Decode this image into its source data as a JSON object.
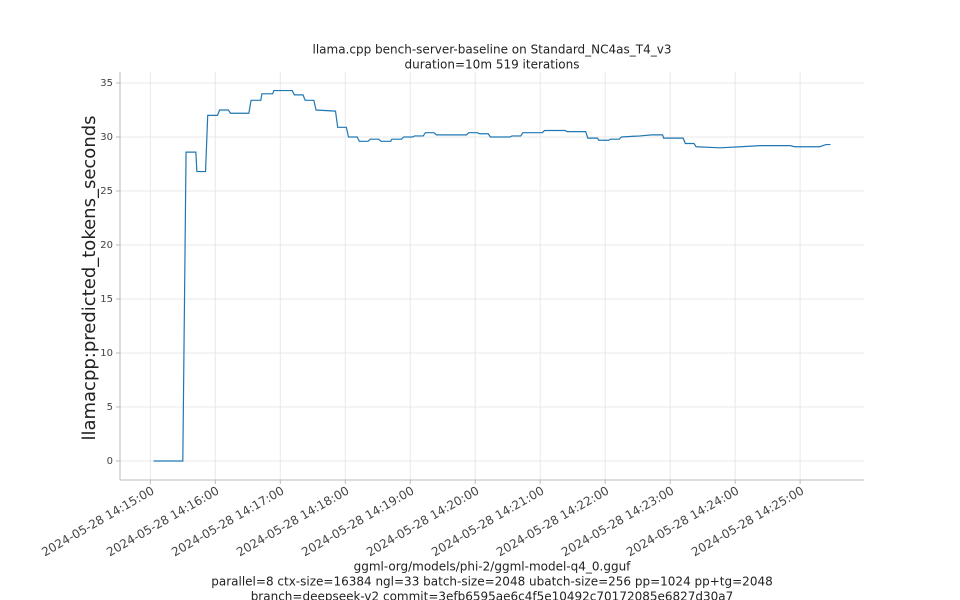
{
  "chart_data": {
    "type": "line",
    "title": "llama.cpp bench-server-baseline on Standard_NC4as_T4_v3",
    "subtitle": "duration=10m 519 iterations",
    "y_label": "llamacpp:predicted_tokens_seconds",
    "footer": [
      "ggml-org/models/phi-2/ggml-model-q4_0.gguf",
      "parallel=8 ctx-size=16384 ngl=33 batch-size=2048 ubatch-size=256 pp=1024 pp+tg=2048",
      "branch=deepseek-v2 commit=3efb6595ae6c4f5e10492c70172085e6827d30a7"
    ],
    "grid": true,
    "x": [
      "2024-05-28 14:15:03",
      "2024-05-28 14:15:30",
      "2024-05-28 14:15:33",
      "2024-05-28 14:15:42",
      "2024-05-28 14:15:43",
      "2024-05-28 14:15:51",
      "2024-05-28 14:15:53",
      "2024-05-28 14:16:02",
      "2024-05-28 14:16:04",
      "2024-05-28 14:16:12",
      "2024-05-28 14:16:14",
      "2024-05-28 14:16:31",
      "2024-05-28 14:16:33",
      "2024-05-28 14:16:42",
      "2024-05-28 14:16:43",
      "2024-05-28 14:16:53",
      "2024-05-28 14:16:54",
      "2024-05-28 14:17:11",
      "2024-05-28 14:17:13",
      "2024-05-28 14:17:21",
      "2024-05-28 14:17:23",
      "2024-05-28 14:17:31",
      "2024-05-28 14:17:33",
      "2024-05-28 14:17:51",
      "2024-05-28 14:17:53",
      "2024-05-28 14:18:01",
      "2024-05-28 14:18:03",
      "2024-05-28 14:18:11",
      "2024-05-28 14:18:13",
      "2024-05-28 14:18:21",
      "2024-05-28 14:18:23",
      "2024-05-28 14:18:31",
      "2024-05-28 14:18:33",
      "2024-05-28 14:18:42",
      "2024-05-28 14:18:43",
      "2024-05-28 14:18:52",
      "2024-05-28 14:18:54",
      "2024-05-28 14:19:02",
      "2024-05-28 14:19:04",
      "2024-05-28 14:19:12",
      "2024-05-28 14:19:14",
      "2024-05-28 14:19:22",
      "2024-05-28 14:19:24",
      "2024-05-28 14:19:52",
      "2024-05-28 14:19:54",
      "2024-05-28 14:20:02",
      "2024-05-28 14:20:04",
      "2024-05-28 14:20:12",
      "2024-05-28 14:20:14",
      "2024-05-28 14:20:32",
      "2024-05-28 14:20:34",
      "2024-05-28 14:20:42",
      "2024-05-28 14:20:44",
      "2024-05-28 14:21:02",
      "2024-05-28 14:21:04",
      "2024-05-28 14:21:23",
      "2024-05-28 14:21:25",
      "2024-05-28 14:21:42",
      "2024-05-28 14:21:44",
      "2024-05-28 14:21:53",
      "2024-05-28 14:21:54",
      "2024-05-28 14:22:03",
      "2024-05-28 14:22:05",
      "2024-05-28 14:22:13",
      "2024-05-28 14:22:15",
      "2024-05-28 14:22:32",
      "2024-05-28 14:22:43",
      "2024-05-28 14:22:53",
      "2024-05-28 14:22:54",
      "2024-05-28 14:23:12",
      "2024-05-28 14:23:14",
      "2024-05-28 14:23:22",
      "2024-05-28 14:23:24",
      "2024-05-28 14:23:46",
      "2024-05-28 14:24:05",
      "2024-05-28 14:24:23",
      "2024-05-28 14:24:51",
      "2024-05-28 14:24:55",
      "2024-05-28 14:25:18",
      "2024-05-28 14:25:24",
      "2024-05-28 14:25:28"
    ],
    "series": [
      {
        "name": "llamacpp:predicted_tokens_seconds",
        "color": "#1f77b4",
        "values": [
          0,
          0,
          28.6,
          28.6,
          26.8,
          26.8,
          32,
          32,
          32.5,
          32.5,
          32.2,
          32.2,
          33.4,
          33.4,
          34,
          34,
          34.3,
          34.3,
          33.9,
          33.9,
          33.4,
          33.4,
          32.5,
          32.4,
          30.9,
          30.9,
          30,
          30,
          29.6,
          29.6,
          29.8,
          29.8,
          29.6,
          29.6,
          29.8,
          29.8,
          30,
          30,
          30.1,
          30.1,
          30.4,
          30.4,
          30.2,
          30.2,
          30.4,
          30.4,
          30.3,
          30.3,
          30,
          30,
          30.1,
          30.1,
          30.4,
          30.4,
          30.6,
          30.6,
          30.5,
          30.5,
          29.9,
          29.9,
          29.7,
          29.7,
          29.8,
          29.8,
          30,
          30.1,
          30.2,
          30.2,
          29.9,
          29.9,
          29.4,
          29.4,
          29.1,
          29,
          29.1,
          29.2,
          29.2,
          29.1,
          29.1,
          29.3,
          29.3
        ]
      }
    ],
    "xlim": [
      "2024-05-28 14:14:32",
      "2024-05-28 14:25:59"
    ],
    "xticks": [
      "2024-05-28 14:15:00",
      "2024-05-28 14:16:00",
      "2024-05-28 14:17:00",
      "2024-05-28 14:18:00",
      "2024-05-28 14:19:00",
      "2024-05-28 14:20:00",
      "2024-05-28 14:21:00",
      "2024-05-28 14:22:00",
      "2024-05-28 14:23:00",
      "2024-05-28 14:24:00",
      "2024-05-28 14:25:00"
    ],
    "ylim": [
      -1.76,
      36.02
    ],
    "yticks": [
      0,
      5,
      10,
      15,
      20,
      25,
      30,
      35
    ]
  }
}
